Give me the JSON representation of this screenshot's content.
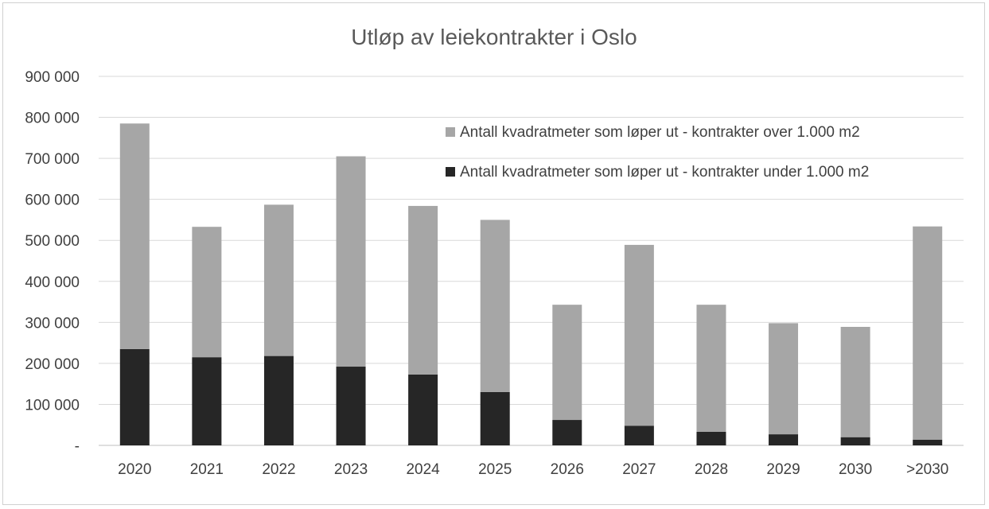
{
  "chart_data": {
    "type": "bar",
    "stacked": true,
    "title": "Utløp av leiekontrakter i Oslo",
    "xlabel": "",
    "ylabel": "",
    "categories": [
      "2020",
      "2021",
      "2022",
      "2023",
      "2024",
      "2025",
      "2026",
      "2027",
      "2028",
      "2029",
      "2030",
      ">2030"
    ],
    "series": [
      {
        "name": "Antall kvadratmeter som løper ut - kontrakter under 1.000 m2",
        "color": "#262626",
        "values": [
          235000,
          215000,
          218000,
          192000,
          173000,
          130000,
          62000,
          48000,
          33000,
          27000,
          20000,
          14000
        ]
      },
      {
        "name": "Antall kvadratmeter som løper ut - kontrakter over 1.000 m2",
        "color": "#a6a6a6",
        "values": [
          550000,
          318000,
          369000,
          513000,
          411000,
          420000,
          281000,
          441000,
          310000,
          271000,
          269000,
          520000
        ]
      }
    ],
    "legend_order": [
      1,
      0
    ],
    "legend_position": "top-right",
    "ylim": [
      0,
      900000
    ],
    "yticks": [
      0,
      100000,
      200000,
      300000,
      400000,
      500000,
      600000,
      700000,
      800000,
      900000
    ],
    "ytick_labels": [
      "-",
      "100 000",
      "200 000",
      "300 000",
      "400 000",
      "500 000",
      "600 000",
      "700 000",
      "800 000",
      "900 000"
    ],
    "grid": true,
    "gridline_color": "#d9d9d9"
  }
}
